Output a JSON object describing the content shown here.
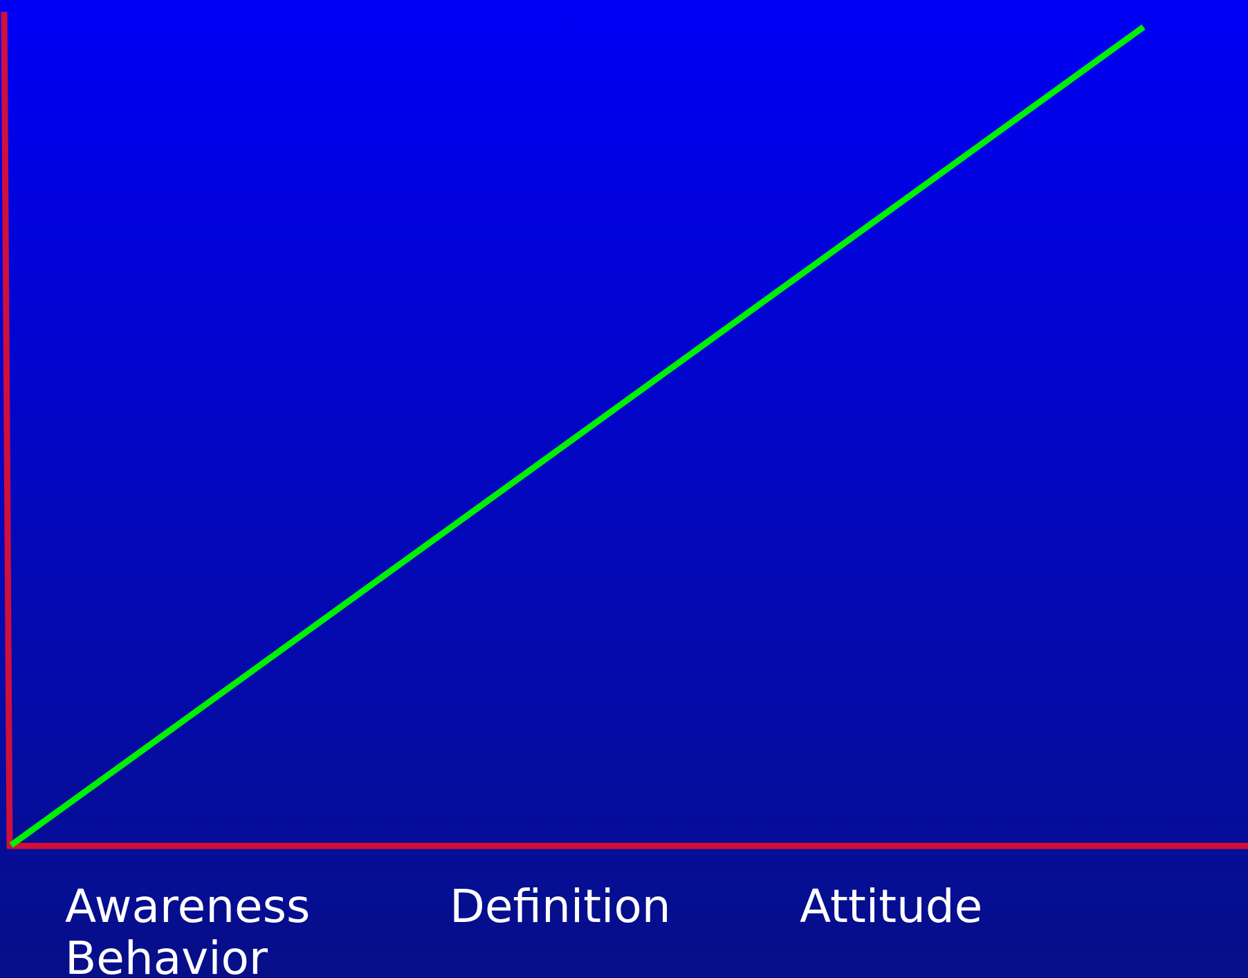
{
  "labels": [
    "Awareness",
    "Definition",
    "Attitude",
    "Behavior"
  ]
}
